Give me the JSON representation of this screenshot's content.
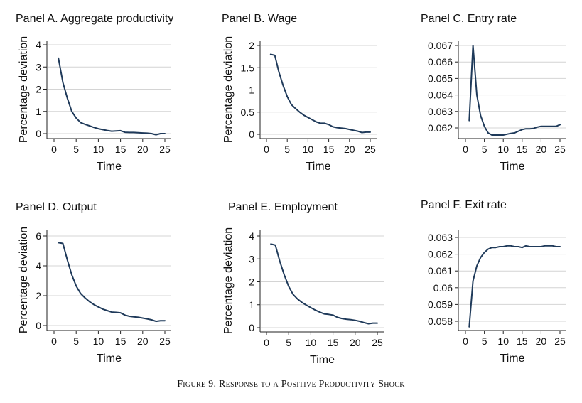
{
  "caption": "Figure 9. Response to a Positive Productivity Shock",
  "chart_data": [
    {
      "type": "line",
      "title": "Panel A. Aggregate productivity",
      "xlabel": "Time",
      "ylabel": "Percentage deviation",
      "xlim": [
        0,
        25
      ],
      "ylim": [
        -0.25,
        4.2
      ],
      "xticks": [
        0,
        5,
        10,
        15,
        20,
        25
      ],
      "yticks": [
        0,
        1,
        2,
        3,
        4
      ],
      "ytick_labels": [
        "0",
        "1",
        "2",
        "3",
        "4"
      ],
      "grid": true,
      "series": [
        {
          "color": "#1f3a5a",
          "x": [
            1,
            2,
            3,
            4,
            5,
            6,
            7,
            8,
            9,
            10,
            11,
            12,
            13,
            14,
            15,
            16,
            17,
            18,
            19,
            20,
            21,
            22,
            23,
            24,
            25
          ],
          "y": [
            3.4,
            2.3,
            1.6,
            1.0,
            0.7,
            0.5,
            0.42,
            0.35,
            0.28,
            0.22,
            0.18,
            0.14,
            0.11,
            0.12,
            0.13,
            0.06,
            0.05,
            0.05,
            0.04,
            0.03,
            0.02,
            0.0,
            -0.05,
            0.0,
            0.0
          ]
        }
      ]
    },
    {
      "type": "line",
      "title": "Panel B. Wage",
      "xlabel": "Time",
      "ylabel": "Percentage deviation",
      "xlim": [
        0,
        25
      ],
      "ylim": [
        -0.12,
        2.05
      ],
      "xticks": [
        0,
        5,
        10,
        15,
        20,
        25
      ],
      "yticks": [
        0,
        0.5,
        1,
        1.5,
        2
      ],
      "ytick_labels": [
        "0",
        "0.5",
        "1",
        "1.5",
        "2"
      ],
      "grid": true,
      "series": [
        {
          "color": "#1f3a5a",
          "x": [
            1,
            2,
            3,
            4,
            5,
            6,
            7,
            8,
            9,
            10,
            11,
            12,
            13,
            14,
            15,
            16,
            17,
            18,
            19,
            20,
            21,
            22,
            23,
            24,
            25
          ],
          "y": [
            1.8,
            1.78,
            1.4,
            1.1,
            0.85,
            0.67,
            0.58,
            0.5,
            0.43,
            0.38,
            0.33,
            0.28,
            0.25,
            0.25,
            0.22,
            0.17,
            0.15,
            0.14,
            0.13,
            0.11,
            0.09,
            0.07,
            0.04,
            0.05,
            0.05
          ]
        }
      ]
    },
    {
      "type": "line",
      "title": "Panel C. Entry rate",
      "xlabel": "Time",
      "ylabel": "",
      "xlim": [
        0,
        25
      ],
      "ylim": [
        0.06153,
        0.0671
      ],
      "xticks": [
        0,
        5,
        10,
        15,
        20,
        25
      ],
      "yticks": [
        0.062,
        0.063,
        0.064,
        0.065,
        0.066,
        0.067
      ],
      "ytick_labels": [
        "0.062",
        "0.063",
        "0.064",
        "0.065",
        "0.066",
        "0.067"
      ],
      "grid": true,
      "series": [
        {
          "color": "#1f3a5a",
          "x": [
            1,
            2,
            3,
            4,
            5,
            6,
            7,
            8,
            9,
            10,
            11,
            12,
            13,
            14,
            15,
            16,
            17,
            18,
            19,
            20,
            21,
            22,
            23,
            24,
            25
          ],
          "y": [
            0.06245,
            0.067,
            0.064,
            0.06275,
            0.0621,
            0.0617,
            0.06157,
            0.06157,
            0.06157,
            0.06157,
            0.06162,
            0.06167,
            0.0617,
            0.0618,
            0.0619,
            0.06195,
            0.06195,
            0.06197,
            0.06205,
            0.0621,
            0.0621,
            0.0621,
            0.0621,
            0.0621,
            0.0622
          ]
        }
      ]
    },
    {
      "type": "line",
      "title": "Panel D. Output",
      "xlabel": "Time",
      "ylabel": "Percentage deviation",
      "xlim": [
        0,
        25
      ],
      "ylim": [
        -0.45,
        6.35
      ],
      "xticks": [
        0,
        5,
        10,
        15,
        20,
        25
      ],
      "yticks": [
        0,
        2,
        4,
        6
      ],
      "ytick_labels": [
        "0",
        "2",
        "4",
        "6"
      ],
      "grid": true,
      "series": [
        {
          "color": "#1f3a5a",
          "x": [
            1,
            2,
            3,
            4,
            5,
            6,
            7,
            8,
            9,
            10,
            11,
            12,
            13,
            14,
            15,
            16,
            17,
            18,
            19,
            20,
            21,
            22,
            23,
            24,
            25
          ],
          "y": [
            5.55,
            5.5,
            4.4,
            3.4,
            2.65,
            2.15,
            1.85,
            1.6,
            1.4,
            1.25,
            1.1,
            1.0,
            0.9,
            0.88,
            0.85,
            0.7,
            0.62,
            0.58,
            0.55,
            0.5,
            0.45,
            0.38,
            0.28,
            0.32,
            0.32
          ]
        }
      ]
    },
    {
      "type": "line",
      "title": "Panel E. Employment",
      "xlabel": "Time",
      "ylabel": "Percentage deviation",
      "xlim": [
        0,
        25
      ],
      "ylim": [
        -0.2,
        4.2
      ],
      "xticks": [
        0,
        5,
        10,
        15,
        20,
        25
      ],
      "yticks": [
        0,
        1,
        2,
        3,
        4
      ],
      "ytick_labels": [
        "0",
        "1",
        "2",
        "3",
        "4"
      ],
      "grid": true,
      "series": [
        {
          "color": "#1f3a5a",
          "x": [
            1,
            2,
            3,
            4,
            5,
            6,
            7,
            8,
            9,
            10,
            11,
            12,
            13,
            14,
            15,
            16,
            17,
            18,
            19,
            20,
            21,
            22,
            23,
            24,
            25
          ],
          "y": [
            3.65,
            3.6,
            2.9,
            2.3,
            1.8,
            1.45,
            1.25,
            1.1,
            0.98,
            0.87,
            0.77,
            0.68,
            0.6,
            0.58,
            0.55,
            0.45,
            0.4,
            0.37,
            0.35,
            0.32,
            0.28,
            0.22,
            0.17,
            0.2,
            0.2
          ]
        }
      ]
    },
    {
      "type": "line",
      "title": "Panel F. Exit rate",
      "xlabel": "Time",
      "ylabel": "",
      "xlim": [
        0,
        25
      ],
      "ylim": [
        0.05767,
        0.06316
      ],
      "xticks": [
        0,
        5,
        10,
        15,
        20,
        25
      ],
      "yticks": [
        0.058,
        0.059,
        0.06,
        0.061,
        0.062,
        0.063
      ],
      "ytick_labels": [
        "0.058",
        "0.059",
        "0.06",
        "0.061",
        "0.062",
        "0.063"
      ],
      "grid": true,
      "series": [
        {
          "color": "#1f3a5a",
          "x": [
            1,
            2,
            3,
            4,
            5,
            6,
            7,
            8,
            9,
            10,
            11,
            12,
            13,
            14,
            15,
            16,
            17,
            18,
            19,
            20,
            21,
            22,
            23,
            24,
            25
          ],
          "y": [
            0.05767,
            0.0604,
            0.0613,
            0.0618,
            0.0621,
            0.0623,
            0.0624,
            0.0624,
            0.06245,
            0.06245,
            0.0625,
            0.0625,
            0.06245,
            0.06245,
            0.0624,
            0.0625,
            0.06245,
            0.06245,
            0.06245,
            0.06245,
            0.0625,
            0.0625,
            0.0625,
            0.06245,
            0.06245
          ]
        }
      ]
    }
  ]
}
